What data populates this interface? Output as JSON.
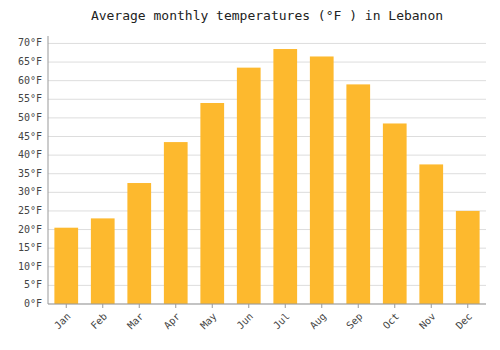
{
  "chart_data": {
    "type": "bar",
    "title": "Average monthly temperatures (°F ) in Lebanon",
    "categories": [
      "Jan",
      "Feb",
      "Mar",
      "Apr",
      "May",
      "Jun",
      "Jul",
      "Aug",
      "Sep",
      "Oct",
      "Nov",
      "Dec"
    ],
    "values": [
      20.5,
      23.0,
      32.5,
      43.5,
      54.0,
      63.5,
      68.5,
      66.5,
      59.0,
      48.5,
      37.5,
      25.0
    ],
    "color": "#FDB92E",
    "ylim": [
      0,
      72
    ],
    "yticks": [
      {
        "value": 0,
        "label": "0°F"
      },
      {
        "value": 5,
        "label": "5°F"
      },
      {
        "value": 10,
        "label": "10°F"
      },
      {
        "value": 15,
        "label": "15°F"
      },
      {
        "value": 20,
        "label": "20°F"
      },
      {
        "value": 25,
        "label": "25°F"
      },
      {
        "value": 30,
        "label": "30°F"
      },
      {
        "value": 35,
        "label": "35°F"
      },
      {
        "value": 40,
        "label": "40°F"
      },
      {
        "value": 45,
        "label": "45°F"
      },
      {
        "value": 50,
        "label": "50°F"
      },
      {
        "value": 55,
        "label": "55°F"
      },
      {
        "value": 60,
        "label": "60°F"
      },
      {
        "value": 65,
        "label": "65°F"
      },
      {
        "value": 70,
        "label": "70°F"
      }
    ],
    "grid": true
  }
}
